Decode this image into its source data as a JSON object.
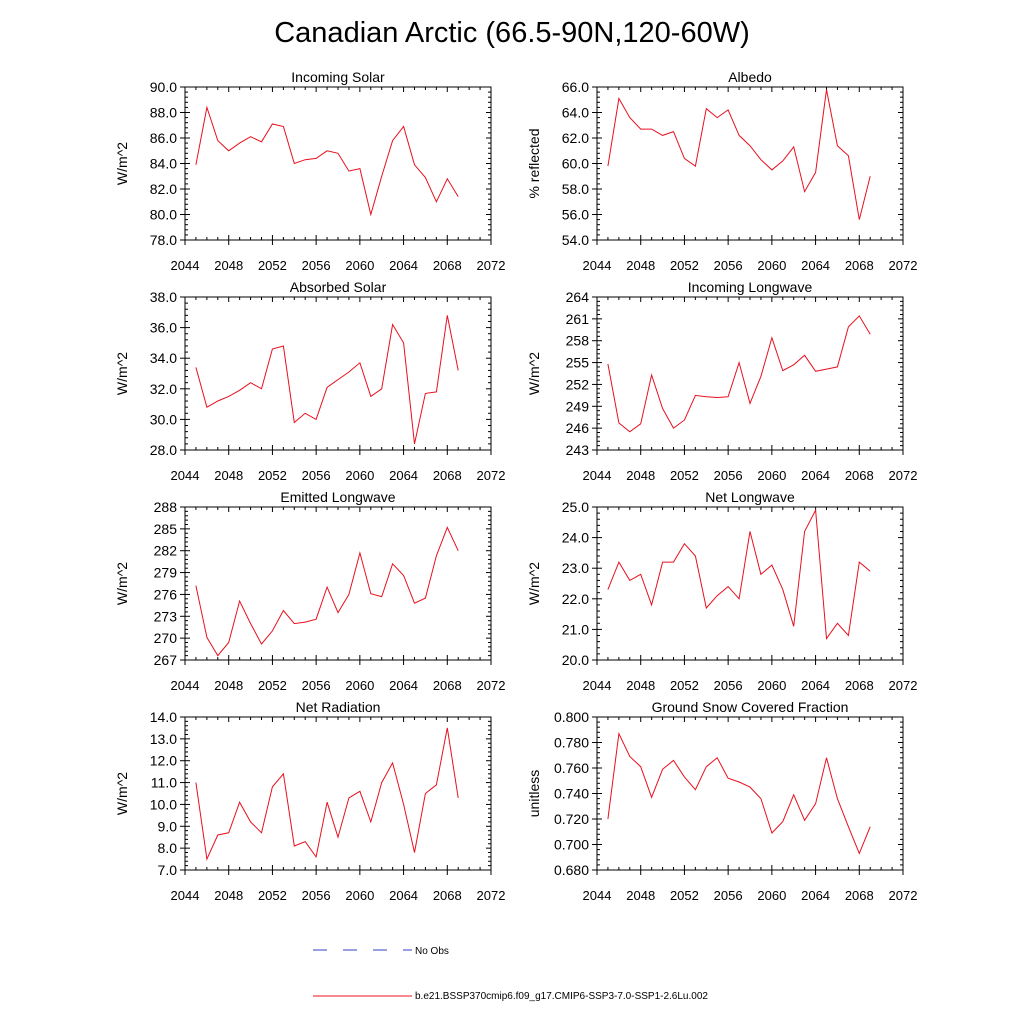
{
  "title": "Canadian Arctic (66.5-90N,120-60W)",
  "colors": {
    "model_line": "#e8101e",
    "obs_line": "#3040c0",
    "axis": "#000000"
  },
  "legend": {
    "obs_label": "No Obs",
    "model_label": "b.e21.BSSP370cmip6.f09_g17.CMIP6-SSP3-7.0-SSP1-2.6Lu.002"
  },
  "chart_data": [
    {
      "type": "line",
      "title": "Incoming Solar",
      "ylabel": "W/m^2",
      "xlim": [
        2044,
        2072
      ],
      "ylim": [
        78.0,
        90.0
      ],
      "x_ticks": [
        "2044",
        "2048",
        "2052",
        "2056",
        "2060",
        "2064",
        "2068",
        "2072"
      ],
      "y_ticks": [
        "78.0",
        "80.0",
        "82.0",
        "84.0",
        "86.0",
        "88.0",
        "90.0"
      ],
      "series": [
        {
          "x": [
            2045,
            2046,
            2047,
            2048,
            2049,
            2050,
            2051,
            2052,
            2053,
            2054,
            2055,
            2056,
            2057,
            2058,
            2059,
            2060,
            2061,
            2062,
            2063,
            2064,
            2065,
            2066,
            2067,
            2068,
            2069
          ],
          "values": [
            83.9,
            88.4,
            85.8,
            85.0,
            85.6,
            86.1,
            85.7,
            87.1,
            86.9,
            84.0,
            84.3,
            84.4,
            85.0,
            84.8,
            83.4,
            83.6,
            80.0,
            83.0,
            85.8,
            86.9,
            83.9,
            82.9,
            81.0,
            82.8,
            81.4
          ]
        }
      ]
    },
    {
      "type": "line",
      "title": "Albedo",
      "ylabel": "% reflected",
      "xlim": [
        2044,
        2072
      ],
      "ylim": [
        54.0,
        66.0
      ],
      "x_ticks": [
        "2044",
        "2048",
        "2052",
        "2056",
        "2060",
        "2064",
        "2068",
        "2072"
      ],
      "y_ticks": [
        "54.0",
        "56.0",
        "58.0",
        "60.0",
        "62.0",
        "64.0",
        "66.0"
      ],
      "series": [
        {
          "x": [
            2045,
            2046,
            2047,
            2048,
            2049,
            2050,
            2051,
            2052,
            2053,
            2054,
            2055,
            2056,
            2057,
            2058,
            2059,
            2060,
            2061,
            2062,
            2063,
            2064,
            2065,
            2066,
            2067,
            2068,
            2069
          ],
          "values": [
            59.8,
            65.1,
            63.6,
            62.7,
            62.7,
            62.2,
            62.5,
            60.4,
            59.8,
            64.3,
            63.6,
            64.2,
            62.2,
            61.4,
            60.3,
            59.5,
            60.2,
            61.3,
            57.8,
            59.3,
            65.8,
            61.4,
            60.6,
            55.6,
            59.0
          ]
        }
      ]
    },
    {
      "type": "line",
      "title": "Absorbed Solar",
      "ylabel": "W/m^2",
      "xlim": [
        2044,
        2072
      ],
      "ylim": [
        28.0,
        38.0
      ],
      "x_ticks": [
        "2044",
        "2048",
        "2052",
        "2056",
        "2060",
        "2064",
        "2068",
        "2072"
      ],
      "y_ticks": [
        "28.0",
        "30.0",
        "32.0",
        "34.0",
        "36.0",
        "38.0"
      ],
      "series": [
        {
          "x": [
            2045,
            2046,
            2047,
            2048,
            2049,
            2050,
            2051,
            2052,
            2053,
            2054,
            2055,
            2056,
            2057,
            2058,
            2059,
            2060,
            2061,
            2062,
            2063,
            2064,
            2065,
            2066,
            2067,
            2068,
            2069
          ],
          "values": [
            33.4,
            30.8,
            31.2,
            31.5,
            31.9,
            32.4,
            32.0,
            34.6,
            34.8,
            29.8,
            30.4,
            30.0,
            32.1,
            32.6,
            33.1,
            33.7,
            31.5,
            32.0,
            36.2,
            35.0,
            28.4,
            31.7,
            31.8,
            36.8,
            33.2
          ]
        }
      ]
    },
    {
      "type": "line",
      "title": "Incoming Longwave",
      "ylabel": "W/m^2",
      "xlim": [
        2044,
        2072
      ],
      "ylim": [
        243,
        264
      ],
      "x_ticks": [
        "2044",
        "2048",
        "2052",
        "2056",
        "2060",
        "2064",
        "2068",
        "2072"
      ],
      "y_ticks": [
        "243",
        "246",
        "249",
        "252",
        "255",
        "258",
        "261",
        "264"
      ],
      "series": [
        {
          "x": [
            2045,
            2046,
            2047,
            2048,
            2049,
            2050,
            2051,
            2052,
            2053,
            2054,
            2055,
            2056,
            2057,
            2058,
            2059,
            2060,
            2061,
            2062,
            2063,
            2064,
            2065,
            2066,
            2067,
            2068,
            2069
          ],
          "values": [
            254.8,
            246.7,
            245.5,
            246.6,
            253.3,
            248.7,
            246.0,
            247.1,
            250.5,
            250.3,
            250.2,
            250.3,
            255.0,
            249.4,
            253.1,
            258.4,
            253.9,
            254.7,
            256.0,
            253.8,
            254.1,
            254.4,
            259.9,
            261.4,
            258.9
          ]
        }
      ]
    },
    {
      "type": "line",
      "title": "Emitted Longwave",
      "ylabel": "W/m^2",
      "xlim": [
        2044,
        2072
      ],
      "ylim": [
        267,
        288
      ],
      "x_ticks": [
        "2044",
        "2048",
        "2052",
        "2056",
        "2060",
        "2064",
        "2068",
        "2072"
      ],
      "y_ticks": [
        "267",
        "270",
        "273",
        "276",
        "279",
        "282",
        "285",
        "288"
      ],
      "series": [
        {
          "x": [
            2045,
            2046,
            2047,
            2048,
            2049,
            2050,
            2051,
            2052,
            2053,
            2054,
            2055,
            2056,
            2057,
            2058,
            2059,
            2060,
            2061,
            2062,
            2063,
            2064,
            2065,
            2066,
            2067,
            2068,
            2069
          ],
          "values": [
            277.2,
            270.1,
            267.6,
            269.4,
            275.1,
            272.0,
            269.2,
            271.0,
            273.8,
            272.0,
            272.2,
            272.6,
            277.0,
            273.5,
            276.0,
            281.7,
            276.1,
            275.7,
            280.2,
            278.6,
            274.8,
            275.5,
            281.3,
            285.2,
            282.0
          ]
        }
      ]
    },
    {
      "type": "line",
      "title": "Net Longwave",
      "ylabel": "W/m^2",
      "xlim": [
        2044,
        2072
      ],
      "ylim": [
        20.0,
        25.0
      ],
      "x_ticks": [
        "2044",
        "2048",
        "2052",
        "2056",
        "2060",
        "2064",
        "2068",
        "2072"
      ],
      "y_ticks": [
        "20.0",
        "21.0",
        "22.0",
        "23.0",
        "24.0",
        "25.0"
      ],
      "series": [
        {
          "x": [
            2045,
            2046,
            2047,
            2048,
            2049,
            2050,
            2051,
            2052,
            2053,
            2054,
            2055,
            2056,
            2057,
            2058,
            2059,
            2060,
            2061,
            2062,
            2063,
            2064,
            2065,
            2066,
            2067,
            2068,
            2069
          ],
          "values": [
            22.3,
            23.2,
            22.6,
            22.8,
            21.8,
            23.2,
            23.2,
            23.8,
            23.4,
            21.7,
            22.1,
            22.4,
            22.0,
            24.2,
            22.8,
            23.1,
            22.3,
            21.1,
            24.2,
            24.9,
            20.7,
            21.2,
            20.8,
            23.2,
            22.9
          ]
        }
      ]
    },
    {
      "type": "line",
      "title": "Net Radiation",
      "ylabel": "W/m^2",
      "xlim": [
        2044,
        2072
      ],
      "ylim": [
        7.0,
        14.0
      ],
      "x_ticks": [
        "2044",
        "2048",
        "2052",
        "2056",
        "2060",
        "2064",
        "2068",
        "2072"
      ],
      "y_ticks": [
        "7.0",
        "8.0",
        "9.0",
        "10.0",
        "11.0",
        "12.0",
        "13.0",
        "14.0"
      ],
      "series": [
        {
          "x": [
            2045,
            2046,
            2047,
            2048,
            2049,
            2050,
            2051,
            2052,
            2053,
            2054,
            2055,
            2056,
            2057,
            2058,
            2059,
            2060,
            2061,
            2062,
            2063,
            2064,
            2065,
            2066,
            2067,
            2068,
            2069
          ],
          "values": [
            11.0,
            7.5,
            8.6,
            8.7,
            10.1,
            9.2,
            8.7,
            10.8,
            11.4,
            8.1,
            8.3,
            7.6,
            10.1,
            8.5,
            10.3,
            10.6,
            9.2,
            11.0,
            11.9,
            10.0,
            7.8,
            10.5,
            10.9,
            13.5,
            10.3
          ]
        }
      ]
    },
    {
      "type": "line",
      "title": "Ground Snow Covered Fraction",
      "ylabel": "unitless",
      "xlim": [
        2044,
        2072
      ],
      "ylim": [
        0.68,
        0.8
      ],
      "x_ticks": [
        "2044",
        "2048",
        "2052",
        "2056",
        "2060",
        "2064",
        "2068",
        "2072"
      ],
      "y_ticks": [
        "0.680",
        "0.700",
        "0.720",
        "0.740",
        "0.760",
        "0.780",
        "0.800"
      ],
      "series": [
        {
          "x": [
            2045,
            2046,
            2047,
            2048,
            2049,
            2050,
            2051,
            2052,
            2053,
            2054,
            2055,
            2056,
            2057,
            2058,
            2059,
            2060,
            2061,
            2062,
            2063,
            2064,
            2065,
            2066,
            2067,
            2068,
            2069
          ],
          "values": [
            0.72,
            0.787,
            0.769,
            0.761,
            0.737,
            0.759,
            0.766,
            0.753,
            0.743,
            0.761,
            0.768,
            0.752,
            0.749,
            0.745,
            0.736,
            0.709,
            0.718,
            0.739,
            0.719,
            0.732,
            0.768,
            0.736,
            0.714,
            0.693,
            0.714
          ]
        }
      ]
    }
  ]
}
